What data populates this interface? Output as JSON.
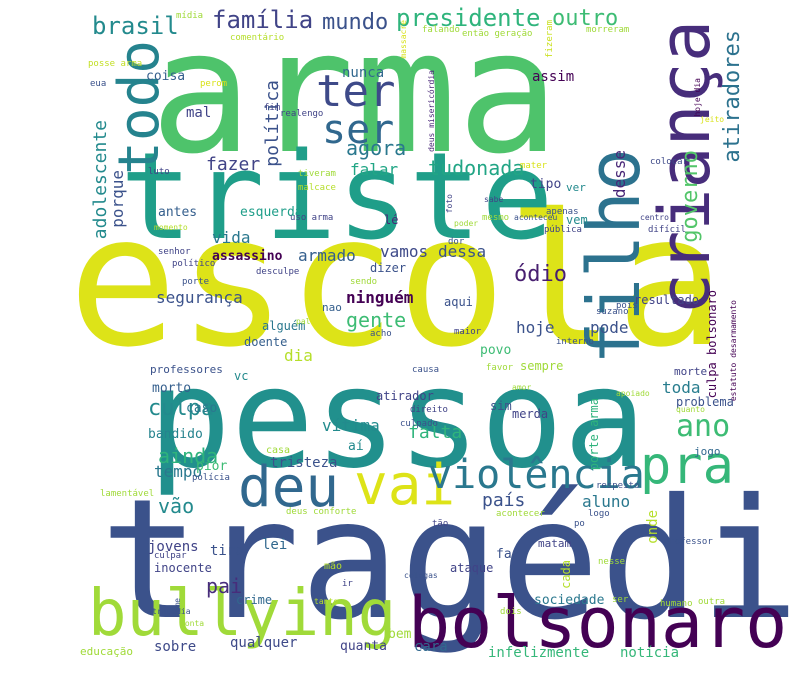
{
  "word_cloud": {
    "words": [
      {
        "text": "arma",
        "color": "#4ec36b"
      },
      {
        "text": "escola",
        "color": "#dde318"
      },
      {
        "text": "tragédia",
        "color": "#3b528b"
      },
      {
        "text": "pessoa",
        "color": "#21908d"
      },
      {
        "text": "triste",
        "color": "#1f9e89"
      },
      {
        "text": "bolsonaro",
        "color": "#440154"
      },
      {
        "text": "criança",
        "color": "#472d7b"
      },
      {
        "text": "filho",
        "color": "#2c728e"
      },
      {
        "text": "bullying",
        "color": "#a0da39"
      },
      {
        "text": "deu",
        "color": "#31688e"
      },
      {
        "text": "vai",
        "color": "#dde318"
      },
      {
        "text": "pra",
        "color": "#35b779"
      },
      {
        "text": "violência",
        "color": "#2a788e"
      },
      {
        "text": "todo",
        "color": "#25838e"
      },
      {
        "text": "ter",
        "color": "#3e4a89"
      },
      {
        "text": "ser",
        "color": "#31688e"
      },
      {
        "text": "ano",
        "color": "#3dbc74"
      },
      {
        "text": "presidente",
        "color": "#2fb47c"
      },
      {
        "text": "família",
        "color": "#404387"
      },
      {
        "text": "mundo",
        "color": "#3b528b"
      },
      {
        "text": "brasil",
        "color": "#238a8d"
      },
      {
        "text": "outro",
        "color": "#3dbc74"
      },
      {
        "text": "atiradores",
        "color": "#2c728e"
      },
      {
        "text": "governo",
        "color": "#52c569"
      },
      {
        "text": "tudonada",
        "color": "#21a585"
      },
      {
        "text": "agora",
        "color": "#2a788e"
      },
      {
        "text": "política",
        "color": "#3b528b"
      },
      {
        "text": "fazer",
        "color": "#414487"
      },
      {
        "text": "falar",
        "color": "#21a685"
      },
      {
        "text": "nunca",
        "color": "#31688e"
      },
      {
        "text": "assim",
        "color": "#440154"
      },
      {
        "text": "coisa",
        "color": "#355f8d"
      },
      {
        "text": "mal",
        "color": "#404387"
      },
      {
        "text": "adolescente",
        "color": "#238a8d"
      },
      {
        "text": "porque",
        "color": "#3b528b"
      },
      {
        "text": "antes",
        "color": "#355f8d"
      },
      {
        "text": "esquerda",
        "color": "#1f9e89"
      },
      {
        "text": "vida",
        "color": "#2a788e"
      },
      {
        "text": "assassino",
        "color": "#440154"
      },
      {
        "text": "armado",
        "color": "#355f8d"
      },
      {
        "text": "vamos",
        "color": "#3e4a89"
      },
      {
        "text": "dessa",
        "color": "#3b528b"
      },
      {
        "text": "desse",
        "color": "#482677"
      },
      {
        "text": "ódio",
        "color": "#481f70"
      },
      {
        "text": "tipo",
        "color": "#404387"
      },
      {
        "text": "ninguém",
        "color": "#440154"
      },
      {
        "text": "segurança",
        "color": "#3b528b"
      },
      {
        "text": "gente",
        "color": "#3dbc74"
      },
      {
        "text": "hoje",
        "color": "#3b528b"
      },
      {
        "text": "pode",
        "color": "#3b528b"
      },
      {
        "text": "dia",
        "color": "#b5de2b"
      },
      {
        "text": "culpa",
        "color": "#238a8d"
      },
      {
        "text": "morto",
        "color": "#355f8d"
      },
      {
        "text": "ainda",
        "color": "#2eb37c"
      },
      {
        "text": "bandido",
        "color": "#25838e"
      },
      {
        "text": "tempo",
        "color": "#2a788e"
      },
      {
        "text": "vítima",
        "color": "#228b8d"
      },
      {
        "text": "falta",
        "color": "#2fb47c"
      },
      {
        "text": "tristeza",
        "color": "#3b528b"
      },
      {
        "text": "país",
        "color": "#3b528b"
      },
      {
        "text": "aluno",
        "color": "#2a788e"
      },
      {
        "text": "toda",
        "color": "#287d8e"
      },
      {
        "text": "vão",
        "color": "#238a8d"
      },
      {
        "text": "pai",
        "color": "#472d7b"
      },
      {
        "text": "jovens",
        "color": "#404387"
      },
      {
        "text": "tiro",
        "color": "#3b528b"
      },
      {
        "text": "lei",
        "color": "#31688e"
      },
      {
        "text": "sobre",
        "color": "#3e4a89"
      },
      {
        "text": "qualquer",
        "color": "#3e4a89"
      },
      {
        "text": "cara",
        "color": "#31688e"
      },
      {
        "text": "infelizmente",
        "color": "#35b779"
      },
      {
        "text": "notícia",
        "color": "#35b779"
      },
      {
        "text": "sociedade",
        "color": "#2a788e"
      },
      {
        "text": "bem",
        "color": "#a0da39"
      },
      {
        "text": "quanta",
        "color": "#404387"
      },
      {
        "text": "resultado",
        "color": "#414487"
      },
      {
        "text": "povo",
        "color": "#3dbc74"
      },
      {
        "text": "sempre",
        "color": "#a0da39"
      },
      {
        "text": "doente",
        "color": "#355f8d"
      },
      {
        "text": "alguém",
        "color": "#2a788e"
      },
      {
        "text": "caso",
        "color": "#2a788e"
      },
      {
        "text": "pior",
        "color": "#3dbc74"
      },
      {
        "text": "aí",
        "color": "#238a8d"
      },
      {
        "text": "problema",
        "color": "#3b528b"
      },
      {
        "text": "jogo",
        "color": "#31688e"
      },
      {
        "text": "sim",
        "color": "#3b528b"
      },
      {
        "text": "merda",
        "color": "#404387"
      },
      {
        "text": "atirador",
        "color": "#404387"
      },
      {
        "text": "vc",
        "color": "#238a8d"
      },
      {
        "text": "nao",
        "color": "#355f8d"
      },
      {
        "text": "aqui",
        "color": "#3b528b"
      },
      {
        "text": "ver",
        "color": "#238a8d"
      },
      {
        "text": "vem",
        "color": "#238a8d"
      },
      {
        "text": "crime",
        "color": "#31688e"
      },
      {
        "text": "inocente",
        "color": "#414487"
      },
      {
        "text": "onde",
        "color": "#b5de2b"
      },
      {
        "text": "faz",
        "color": "#3b528b"
      },
      {
        "text": "matam",
        "color": "#414487"
      },
      {
        "text": "porte arma",
        "color": "#2eb37c"
      },
      {
        "text": "culpa bolsonaro",
        "color": "#440154"
      },
      {
        "text": "mídia",
        "color": "#a0da39"
      },
      {
        "text": "posse arma",
        "color": "#c2df23"
      },
      {
        "text": "comentário",
        "color": "#b5de2b"
      },
      {
        "text": "então geração",
        "color": "#a0da39"
      },
      {
        "text": "falando",
        "color": "#a0da39"
      },
      {
        "text": "morreram",
        "color": "#a0da39"
      },
      {
        "text": "fizeram",
        "color": "#cae11f"
      },
      {
        "text": "hoje dia",
        "color": "#440154"
      },
      {
        "text": "eua",
        "color": "#3b528b"
      },
      {
        "text": "perom",
        "color": "#d8e219"
      },
      {
        "text": "massacre",
        "color": "#d8e219"
      },
      {
        "text": "fim",
        "color": "#414487"
      },
      {
        "text": "realengo",
        "color": "#414487"
      },
      {
        "text": "deus misericórdia",
        "color": "#482677"
      },
      {
        "text": "jeito",
        "color": "#d8e219"
      },
      {
        "text": "luto",
        "color": "#404387"
      },
      {
        "text": "tiveram",
        "color": "#a0da39"
      },
      {
        "text": "malcace",
        "color": "#b5de2b"
      },
      {
        "text": "mater",
        "color": "#d8e219"
      },
      {
        "text": "colocar",
        "color": "#3e4a89"
      },
      {
        "text": "uso arma",
        "color": "#404387"
      },
      {
        "text": "lé",
        "color": "#482677"
      },
      {
        "text": "foto",
        "color": "#404387"
      },
      {
        "text": "sabe",
        "color": "#404387"
      },
      {
        "text": "mesmo",
        "color": "#a0da39"
      },
      {
        "text": "aconteceu",
        "color": "#3b528b"
      },
      {
        "text": "apenas",
        "color": "#3b528b"
      },
      {
        "text": "centro",
        "color": "#404387"
      },
      {
        "text": "pública",
        "color": "#414487"
      },
      {
        "text": "difícil",
        "color": "#414487"
      },
      {
        "text": "estatuto desarmamento",
        "color": "#440154"
      },
      {
        "text": "suzano",
        "color": "#3b528b"
      },
      {
        "text": "pois",
        "color": "#3b528b"
      },
      {
        "text": "senhor",
        "color": "#404387"
      },
      {
        "text": "político",
        "color": "#414487"
      },
      {
        "text": "desculpe",
        "color": "#404387"
      },
      {
        "text": "dizer",
        "color": "#3b528b"
      },
      {
        "text": "porte",
        "color": "#3b528b"
      },
      {
        "text": "sendo",
        "color": "#a0da39"
      },
      {
        "text": "dor",
        "color": "#3b528b"
      },
      {
        "text": "acho",
        "color": "#3b528b"
      },
      {
        "text": "maior",
        "color": "#404387"
      },
      {
        "text": "interno",
        "color": "#3b528b"
      },
      {
        "text": "professores",
        "color": "#3b528b"
      },
      {
        "text": "causa",
        "color": "#3b528b"
      },
      {
        "text": "favor",
        "color": "#a0da39"
      },
      {
        "text": "morte",
        "color": "#404387"
      },
      {
        "text": "amor",
        "color": "#a0da39"
      },
      {
        "text": "apoiado",
        "color": "#a0da39"
      },
      {
        "text": "quanto",
        "color": "#a0da39"
      },
      {
        "text": "direito",
        "color": "#404387"
      },
      {
        "text": "culpado",
        "color": "#3b528b"
      },
      {
        "text": "casa",
        "color": "#a0da39"
      },
      {
        "text": "polícia",
        "color": "#3b528b"
      },
      {
        "text": "lamentável",
        "color": "#a0da39"
      },
      {
        "text": "deus conforte",
        "color": "#a0da39"
      },
      {
        "text": "respeito",
        "color": "#3b528b"
      },
      {
        "text": "acontecer",
        "color": "#a0da39"
      },
      {
        "text": "logo",
        "color": "#3b528b"
      },
      {
        "text": "po",
        "color": "#3b528b"
      },
      {
        "text": "professor",
        "color": "#3b528b"
      },
      {
        "text": "culpar",
        "color": "#414487"
      },
      {
        "text": "tão",
        "color": "#414487"
      },
      {
        "text": "mão",
        "color": "#b5de2b"
      },
      {
        "text": "ataque",
        "color": "#404387"
      },
      {
        "text": "cada",
        "color": "#b5de2b"
      },
      {
        "text": "nesse",
        "color": "#a0da39"
      },
      {
        "text": "humano",
        "color": "#a0da39"
      },
      {
        "text": "outra",
        "color": "#a0da39"
      },
      {
        "text": "ser",
        "color": "#a0da39"
      },
      {
        "text": "ir",
        "color": "#414487"
      },
      {
        "text": "colegas",
        "color": "#3b528b"
      },
      {
        "text": "nome",
        "color": "#3b528b"
      },
      {
        "text": "tanto",
        "color": "#b5de2b"
      },
      {
        "text": "dois",
        "color": "#a0da39"
      },
      {
        "text": "educação",
        "color": "#a0da39"
      },
      {
        "text": "tragedia",
        "color": "#3b528b"
      },
      {
        "text": "pal",
        "color": "#a0da39"
      },
      {
        "text": "momento",
        "color": "#b5de2b"
      },
      {
        "text": "poder",
        "color": "#a0da39"
      },
      {
        "text": "conta",
        "color": "#a0da39"
      }
    ]
  }
}
